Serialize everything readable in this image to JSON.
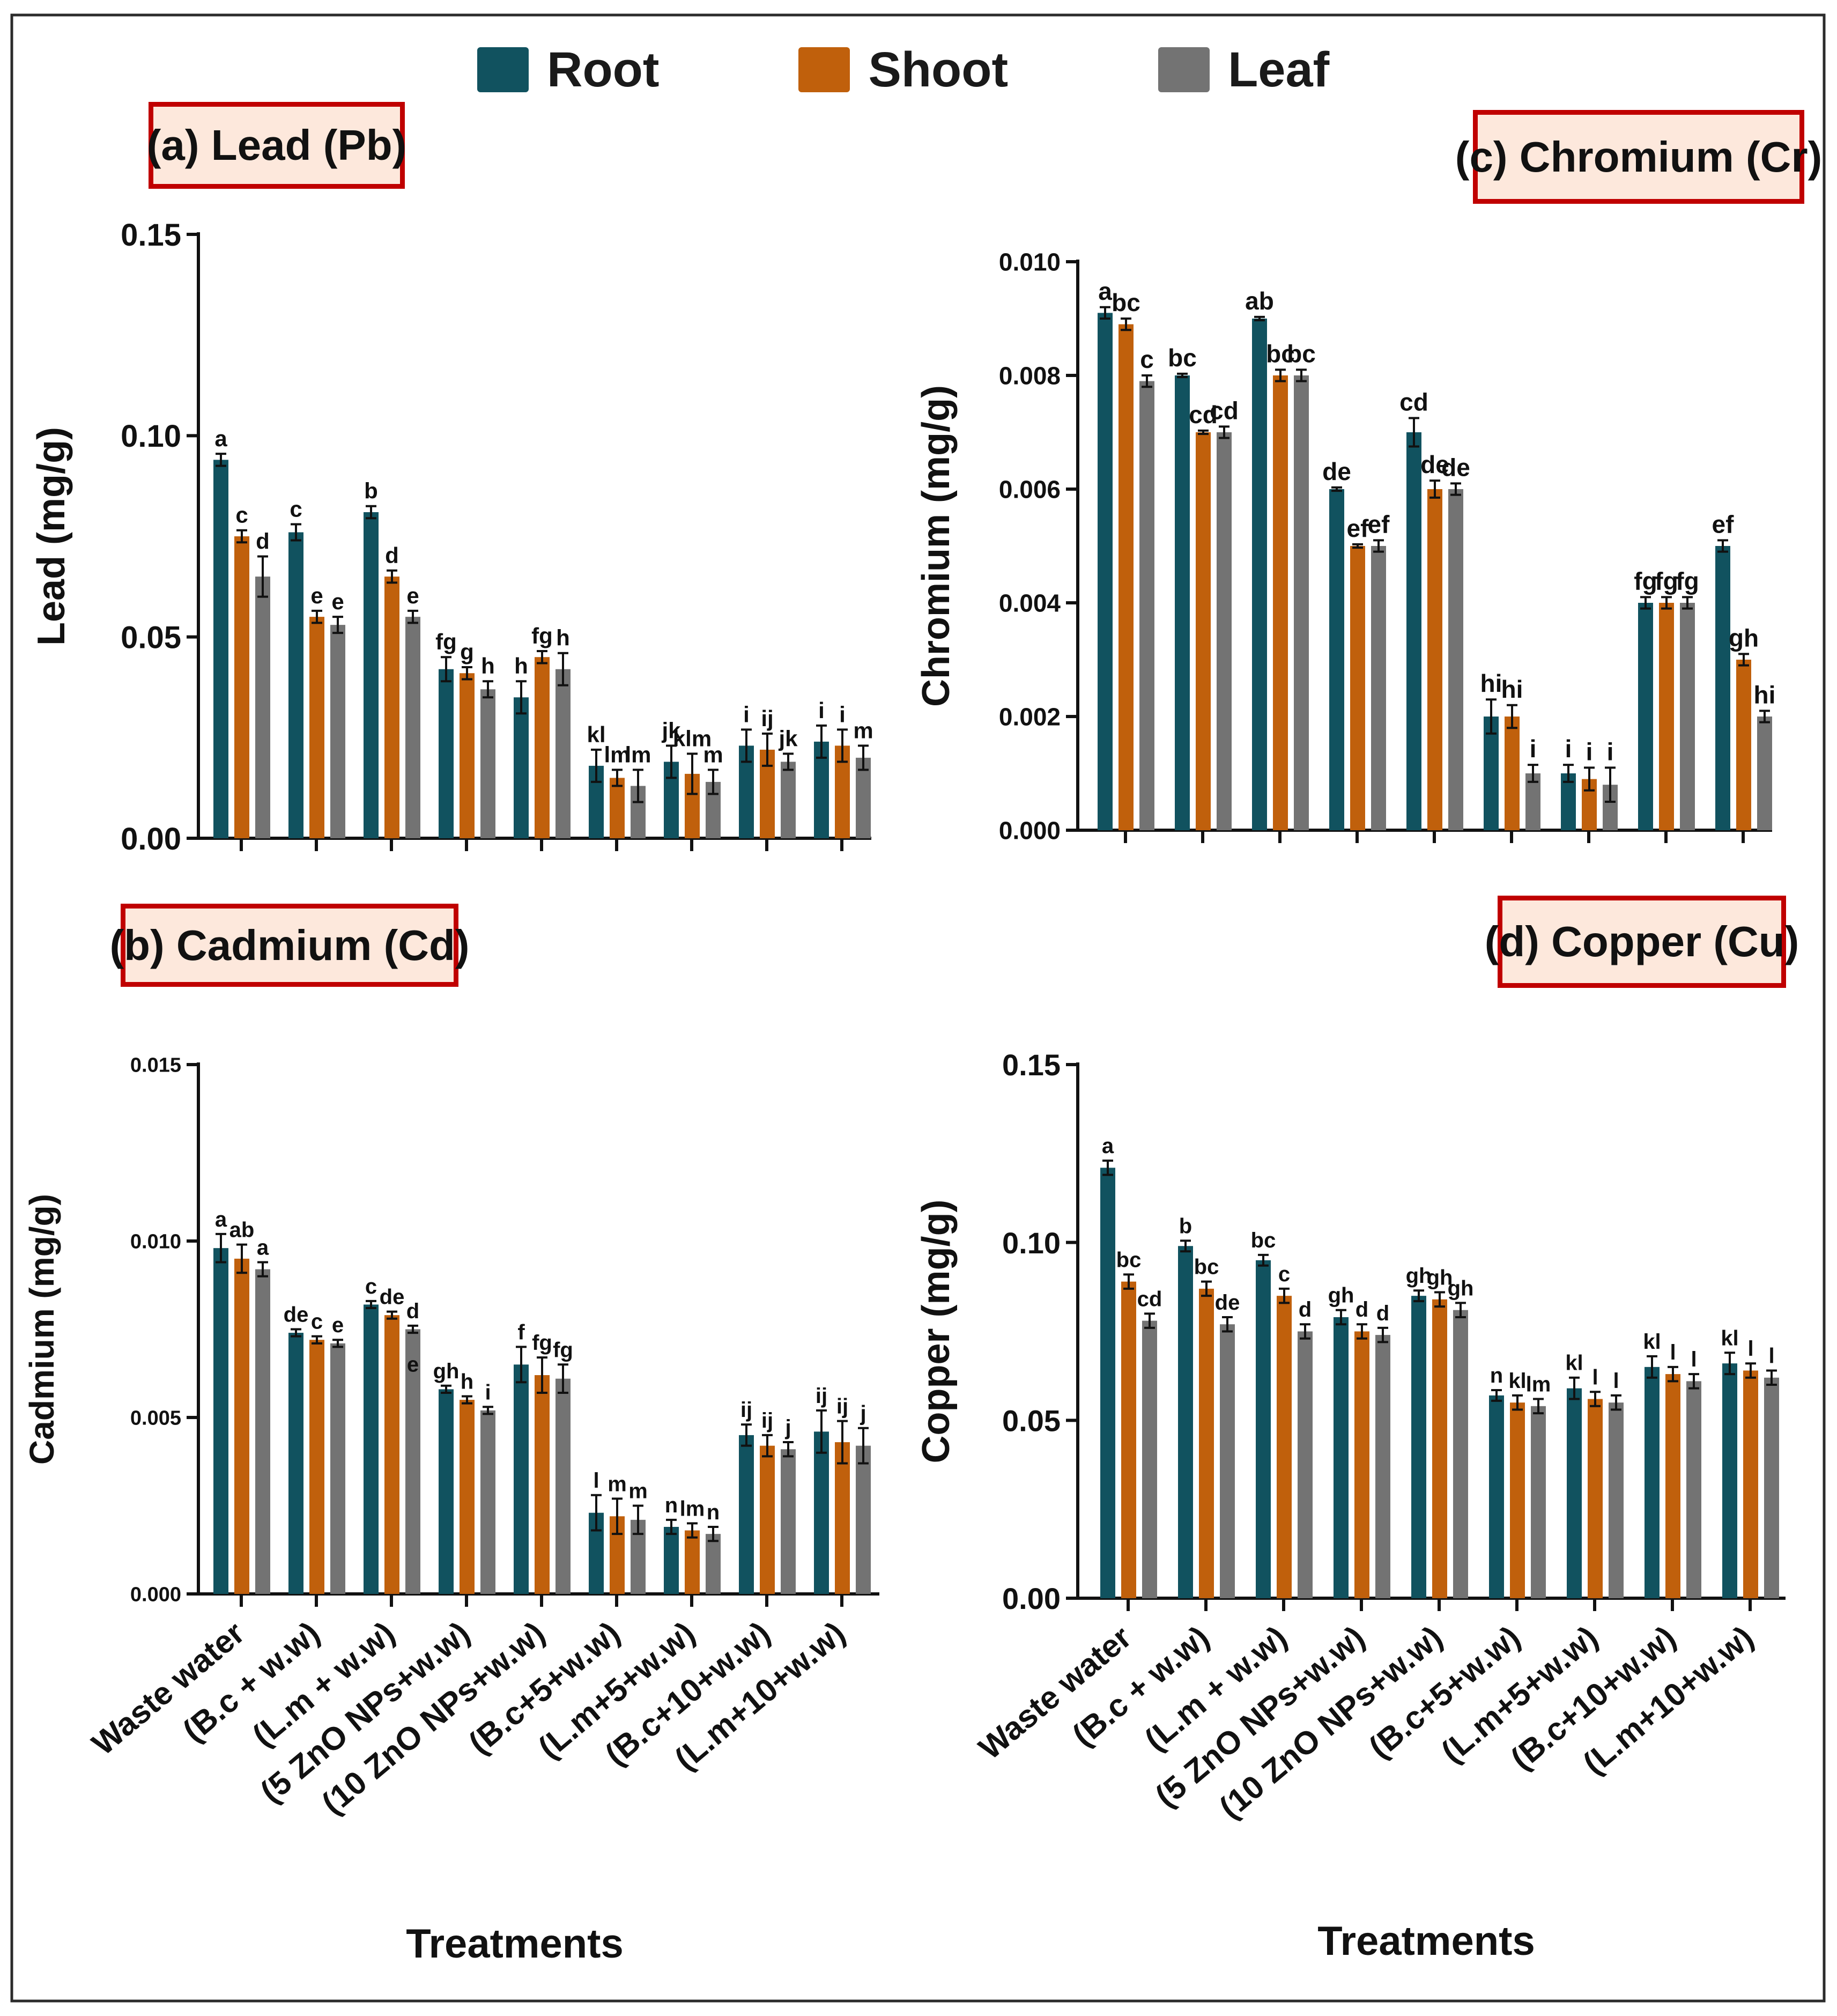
{
  "colors": {
    "root": "#11525f",
    "shoot": "#c0600c",
    "leaf": "#737373",
    "frame": "#2b2b2b",
    "title_border": "#c00000",
    "title_bg": "#fde8dc"
  },
  "legend": [
    {
      "key": "root",
      "label": "Root"
    },
    {
      "key": "shoot",
      "label": "Shoot"
    },
    {
      "key": "leaf",
      "label": "Leaf"
    }
  ],
  "x_title": "Treatments",
  "categories": [
    "Waste water",
    "(B.c + w.w)",
    "(L.m + w.w)",
    "(5 ZnO NPs+w.w)",
    "(10 ZnO NPs+w.w)",
    "(B.c+5+w.w)",
    "(L.m+5+w.w)",
    "(B.c+10+w.w)",
    "(L.m+10+w.w)"
  ],
  "chart_data": [
    {
      "id": "pb",
      "type": "bar",
      "title": "(a) Lead (Pb)",
      "ylabel": "Lead (mg/g)",
      "ylim": [
        0,
        0.15
      ],
      "yticks": [
        "0.00",
        "0.05",
        "0.10",
        "0.15"
      ],
      "show_category_labels": false,
      "series": [
        {
          "name": "Root",
          "values": [
            0.094,
            0.076,
            0.081,
            0.042,
            0.035,
            0.018,
            0.019,
            0.023,
            0.024
          ],
          "errors": [
            0.0015,
            0.002,
            0.0015,
            0.003,
            0.004,
            0.004,
            0.004,
            0.004,
            0.004
          ],
          "letters": [
            "a",
            "c",
            "b",
            "fg",
            "h",
            "kl",
            "jk",
            "i",
            "i"
          ]
        },
        {
          "name": "Shoot",
          "values": [
            0.075,
            0.055,
            0.065,
            0.041,
            0.045,
            0.015,
            0.016,
            0.022,
            0.023
          ],
          "errors": [
            0.0015,
            0.0015,
            0.0015,
            0.0015,
            0.0015,
            0.002,
            0.005,
            0.004,
            0.004
          ],
          "letters": [
            "c",
            "e",
            "d",
            "g",
            "fg",
            "lm",
            "klm",
            "ij",
            "i"
          ]
        },
        {
          "name": "Leaf",
          "values": [
            0.065,
            0.053,
            0.055,
            0.037,
            0.042,
            0.013,
            0.014,
            0.019,
            0.02
          ],
          "errors": [
            0.005,
            0.002,
            0.0015,
            0.002,
            0.004,
            0.004,
            0.003,
            0.002,
            0.003
          ],
          "letters": [
            "d",
            "e",
            "e",
            "h",
            "h",
            "lm",
            "m",
            "jk",
            "m"
          ]
        }
      ]
    },
    {
      "id": "cr",
      "type": "bar",
      "title": "(c) Chromium (Cr)",
      "ylabel": "Chromium (mg/g)",
      "ylim": [
        0,
        0.01
      ],
      "yticks": [
        "0.000",
        "0.002",
        "0.004",
        "0.006",
        "0.008",
        "0.010"
      ],
      "show_category_labels": false,
      "series": [
        {
          "name": "Root",
          "values": [
            0.0091,
            0.008,
            0.009,
            0.006,
            0.007,
            0.002,
            0.001,
            0.004,
            0.005
          ],
          "errors": [
            0.0001,
            3e-05,
            3e-05,
            3e-05,
            0.00025,
            0.0003,
            0.00015,
            0.0001,
            0.0001
          ],
          "letters": [
            "a",
            "bc",
            "ab",
            "de",
            "cd",
            "hi",
            "i",
            "fg",
            "ef"
          ]
        },
        {
          "name": "Shoot",
          "values": [
            0.0089,
            0.007,
            0.008,
            0.005,
            0.006,
            0.002,
            0.0009,
            0.004,
            0.003
          ],
          "errors": [
            0.0001,
            3e-05,
            0.0001,
            3e-05,
            0.00015,
            0.0002,
            0.0002,
            0.0001,
            0.0001
          ],
          "letters": [
            "bc",
            "cd",
            "bc",
            "ef",
            "de",
            "hi",
            "i",
            "fg",
            "gh"
          ]
        },
        {
          "name": "Leaf",
          "values": [
            0.0079,
            0.007,
            0.008,
            0.005,
            0.006,
            0.001,
            0.0008,
            0.004,
            0.002
          ],
          "errors": [
            0.0001,
            0.0001,
            0.0001,
            0.0001,
            0.0001,
            0.00015,
            0.0003,
            0.0001,
            0.0001
          ],
          "letters": [
            "c",
            "cd",
            "bc",
            "ef",
            "de",
            "i",
            "i",
            "fg",
            "hi"
          ]
        }
      ]
    },
    {
      "id": "cd",
      "type": "bar",
      "title": "(b) Cadmium (Cd)",
      "ylabel": "Cadmium (mg/g)",
      "ylim": [
        0,
        0.015
      ],
      "yticks": [
        "0.000",
        "0.005",
        "0.010",
        "0.015"
      ],
      "show_category_labels": true,
      "series": [
        {
          "name": "Root",
          "values": [
            0.0098,
            0.0074,
            0.0082,
            0.0058,
            0.0065,
            0.0023,
            0.0019,
            0.0045,
            0.0046
          ],
          "errors": [
            0.0004,
            0.0001,
            0.0001,
            0.0001,
            0.0005,
            0.0005,
            0.0002,
            0.0003,
            0.0006
          ],
          "letters": [
            "a",
            "de",
            "c",
            "gh",
            "f",
            "l",
            "n",
            "ij",
            "ij"
          ]
        },
        {
          "name": "Shoot",
          "values": [
            0.0095,
            0.0072,
            0.0079,
            0.0055,
            0.0062,
            0.0022,
            0.0018,
            0.0042,
            0.0043
          ],
          "errors": [
            0.0004,
            0.0001,
            0.0001,
            0.0001,
            0.0005,
            0.0005,
            0.0002,
            0.0003,
            0.0006
          ],
          "letters": [
            "ab",
            "c",
            "de",
            "h",
            "fg",
            "m",
            "lm",
            "ij",
            "ij"
          ]
        },
        {
          "name": "Leaf",
          "values": [
            0.0092,
            0.0071,
            0.0075,
            0.0052,
            0.0061,
            0.0021,
            0.0017,
            0.0041,
            0.0042
          ],
          "errors": [
            0.0002,
            0.0001,
            0.0001,
            0.0001,
            0.0004,
            0.0004,
            0.0002,
            0.0002,
            0.0005
          ],
          "letters": [
            "a",
            "e",
            "d",
            "i",
            "fg",
            "m",
            "n",
            "j",
            "j"
          ]
        }
      ],
      "extra_labels": [
        {
          "category": 2,
          "series": 2,
          "letter": "e",
          "dy": 0.0012
        }
      ]
    },
    {
      "id": "cu",
      "type": "bar",
      "title": "(d) Copper (Cu)",
      "ylabel": "Copper (mg/g)",
      "ylim": [
        0,
        0.15
      ],
      "yticks": [
        "0.00",
        "0.05",
        "0.10",
        "0.15"
      ],
      "show_category_labels": true,
      "series": [
        {
          "name": "Root",
          "values": [
            0.121,
            0.099,
            0.095,
            0.079,
            0.085,
            0.057,
            0.059,
            0.065,
            0.066
          ],
          "errors": [
            0.002,
            0.0015,
            0.0015,
            0.002,
            0.0015,
            0.0015,
            0.003,
            0.003,
            0.003
          ],
          "letters": [
            "a",
            "b",
            "bc",
            "gh",
            "gh",
            "n",
            "kl",
            "kl",
            "kl"
          ]
        },
        {
          "name": "Shoot",
          "values": [
            0.089,
            0.087,
            0.085,
            0.075,
            0.084,
            0.055,
            0.056,
            0.063,
            0.064
          ],
          "errors": [
            0.002,
            0.002,
            0.002,
            0.002,
            0.002,
            0.002,
            0.002,
            0.002,
            0.002
          ],
          "letters": [
            "bc",
            "bc",
            "c",
            "d",
            "gh",
            "kl",
            "l",
            "l",
            "l"
          ]
        },
        {
          "name": "Leaf",
          "values": [
            0.078,
            0.077,
            0.075,
            0.074,
            0.081,
            0.054,
            0.055,
            0.061,
            0.062
          ],
          "errors": [
            0.002,
            0.002,
            0.002,
            0.002,
            0.002,
            0.002,
            0.002,
            0.002,
            0.002
          ],
          "letters": [
            "cd",
            "de",
            "d",
            "d",
            "gh",
            "lm",
            "l",
            "l",
            "l"
          ]
        }
      ]
    }
  ]
}
